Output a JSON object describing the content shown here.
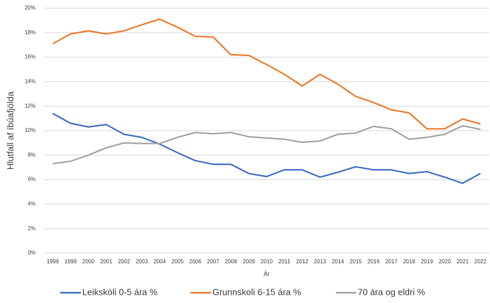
{
  "chart_data": {
    "type": "line",
    "categories": [
      "1998",
      "1999",
      "2000",
      "2001",
      "2002",
      "2003",
      "2004",
      "2005",
      "2006",
      "2007",
      "2008",
      "2009",
      "2010",
      "2011",
      "2012",
      "2013",
      "2014",
      "2015",
      "2016",
      "2017",
      "2018",
      "2019",
      "2020",
      "2021",
      "2022"
    ],
    "series": [
      {
        "name": "Leikskóli 0-5 ára %",
        "color": "#4472c4",
        "values": [
          11.4,
          10.6,
          10.3,
          10.5,
          9.7,
          9.45,
          8.9,
          8.2,
          7.55,
          7.25,
          7.25,
          6.5,
          6.25,
          6.8,
          6.8,
          6.2,
          6.6,
          7.05,
          6.8,
          6.8,
          6.5,
          6.65,
          6.2,
          5.7,
          6.5
        ]
      },
      {
        "name": "Grunnskoli 6-15 ára %",
        "color": "#ed7d31",
        "values": [
          17.1,
          17.9,
          18.15,
          17.9,
          18.15,
          18.65,
          19.1,
          18.45,
          17.7,
          17.65,
          16.2,
          16.15,
          15.4,
          14.6,
          13.65,
          14.6,
          13.8,
          12.8,
          12.3,
          11.7,
          11.45,
          10.15,
          10.15,
          10.95,
          10.55
        ]
      },
      {
        "name": "70 ára og eldri %",
        "color": "#a5a5a5",
        "values": [
          7.3,
          7.5,
          8.0,
          8.6,
          9.0,
          8.95,
          8.95,
          9.45,
          9.85,
          9.75,
          9.85,
          9.5,
          9.4,
          9.3,
          9.05,
          9.15,
          9.7,
          9.8,
          10.35,
          10.15,
          9.3,
          9.45,
          9.7,
          10.4,
          10.1
        ]
      }
    ],
    "y_label": "Hlutfall af íbúafjölda",
    "x_label": "Ár",
    "ylim": [
      0,
      20
    ],
    "yticks": [
      {
        "value": 0,
        "label": "0%"
      },
      {
        "value": 2,
        "label": "2%"
      },
      {
        "value": 4,
        "label": "4%"
      },
      {
        "value": 6,
        "label": "6%"
      },
      {
        "value": 8,
        "label": "8%"
      },
      {
        "value": 10,
        "label": "10%"
      },
      {
        "value": 12,
        "label": "12%"
      },
      {
        "value": 14,
        "label": "14%"
      },
      {
        "value": 16,
        "label": "16%"
      },
      {
        "value": 18,
        "label": "18%"
      },
      {
        "value": 20,
        "label": "20%"
      }
    ],
    "grid": true,
    "legend": "bottom"
  }
}
